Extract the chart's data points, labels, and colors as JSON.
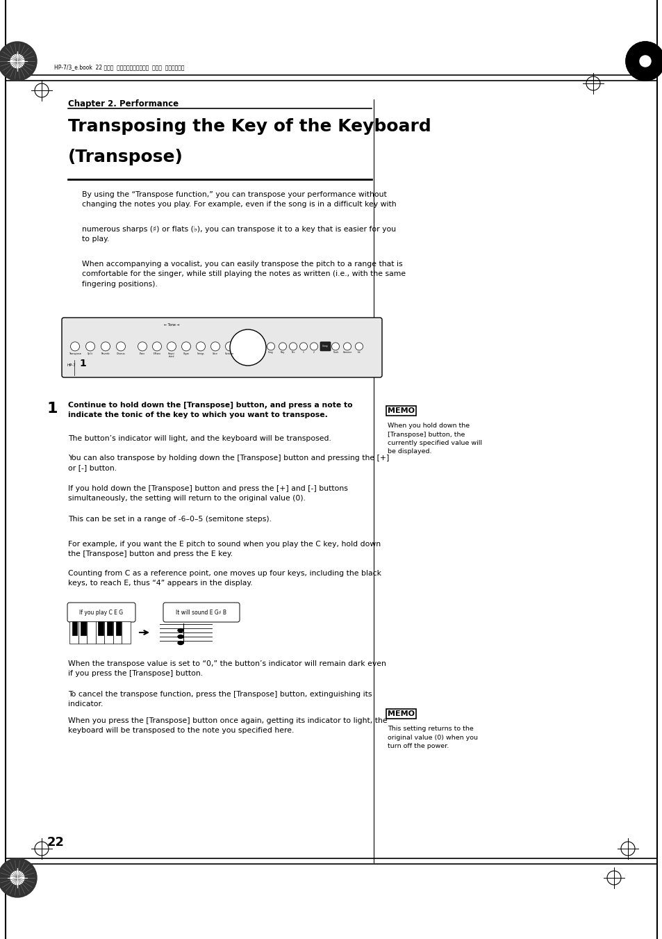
{
  "bg_color": "#ffffff",
  "page_width": 9.54,
  "page_height": 13.51,
  "header_text": "HP-7/3_e.book  22 ページ  ２００４年１月２６日  月曜日  午後５時１分",
  "chapter_label": "Chapter 2. Performance",
  "title_line1": "Transposing the Key of the Keyboard",
  "title_line2": "(Transpose)",
  "body_text_1": "By using the “Transpose function,” you can transpose your performance without\nchanging the notes you play. For example, even if the song is in a difficult key with",
  "body_text_2": "numerous sharps (♯) or flats (♭), you can transpose it to a key that is easier for you\nto play.",
  "body_text_3": "When accompanying a vocalist, you can easily transpose the pitch to a range that is\ncomfortable for the singer, while still playing the notes as written (i.e., with the same\nfingering positions).",
  "step1_bold": "Continue to hold down the [Transpose] button, and press a note to\nindicate the tonic of the key to which you want to transpose.",
  "step1_p1": "The button’s indicator will light, and the keyboard will be transposed.",
  "step1_p2": "You can also transpose by holding down the [Transpose] button and pressing the [+]\nor [-] button.",
  "step1_p3": "If you hold down the [Transpose] button and press the [+] and [-] buttons\nsimultaneously, the setting will return to the original value (0).",
  "step1_p4": "This can be set in a range of -6–0–5 (semitone steps).",
  "step1_p5": "For example, if you want the E pitch to sound when you play the C key, hold down\nthe [Transpose] button and press the E key.",
  "step1_p6": "Counting from C as a reference point, one moves up four keys, including the black\nkeys, to reach E, thus “4” appears in the display.",
  "caption1": "If you play C E G",
  "caption2": "It will sound E G♯ B",
  "step1_p7": "When the transpose value is set to “0,” the button’s indicator will remain dark even\nif you press the [Transpose] button.",
  "step1_p8": "To cancel the transpose function, press the [Transpose] button, extinguishing its\nindicator.",
  "step1_p9": "When you press the [Transpose] button once again, getting its indicator to light, the\nkeyboard will be transposed to the note you specified here.",
  "memo1_text": "When you hold down the\n[Transpose] button, the\ncurrently specified value will\nbe displayed.",
  "memo2_text": "This setting returns to the\noriginal value (0) when you\nturn off the power.",
  "page_number": "22"
}
